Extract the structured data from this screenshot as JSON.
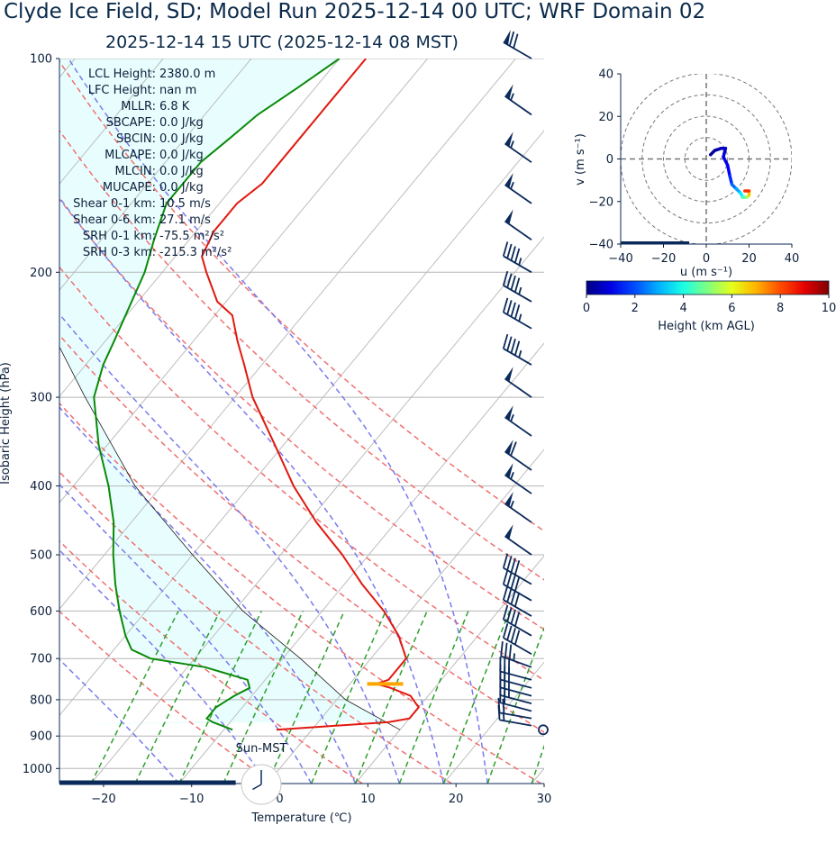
{
  "title": {
    "line1": "Clyde Ice Field, SD; Model Run 2025-12-14 00 UTC; WRF Domain 02",
    "line2": "2025-12-14 15 UTC  (2025-12-14 08 MST)"
  },
  "chart_data": [
    {
      "type": "skew-t",
      "xlabel": "Temperature (℃)",
      "ylabel": "Isobaric Height (hPa)",
      "xlim": [
        -25,
        30
      ],
      "ylim": [
        1050,
        100
      ],
      "x_ticks": [
        -20,
        -10,
        0,
        10,
        20,
        30
      ],
      "x_tick_labels": [
        "−20",
        "−10",
        "0",
        "10",
        "20",
        "30"
      ],
      "y_ticks": [
        100,
        200,
        300,
        400,
        500,
        600,
        700,
        800,
        900,
        1000
      ],
      "skew_deg_per_log": 29,
      "dry_adiabats_theta_K": [
        270,
        280,
        290,
        300,
        310,
        320,
        330,
        340,
        350
      ],
      "moist_adiabats_start_C": [
        -10,
        0,
        5,
        10,
        15,
        20,
        25
      ],
      "mixing_ratio_start_C": [
        -20,
        -15,
        -10,
        -5,
        0,
        5,
        10,
        15,
        20,
        25,
        30
      ],
      "isotherm_spacing_C": 10,
      "grid": true,
      "temperature_profile": {
        "p": [
          882,
          860,
          850,
          820,
          790,
          770,
          760,
          750,
          700,
          650,
          600,
          550,
          500,
          450,
          400,
          350,
          300,
          270,
          250,
          230,
          220,
          200,
          190,
          175,
          160,
          150,
          130,
          115,
          100
        ],
        "T": [
          -4,
          8,
          10,
          10,
          8,
          5,
          3,
          4,
          4,
          1,
          -3,
          -8,
          -13,
          -19,
          -25,
          -31,
          -38,
          -42,
          -45,
          -48,
          -51,
          -55,
          -57,
          -58,
          -58,
          -57,
          -57,
          -57,
          -57
        ]
      },
      "dewpoint_profile": {
        "p": [
          882,
          860,
          850,
          820,
          790,
          770,
          750,
          720,
          700,
          680,
          650,
          600,
          550,
          500,
          450,
          400,
          350,
          300,
          270,
          250,
          200,
          180,
          160,
          140,
          130,
          120,
          110,
          100
        ],
        "Td": [
          -9,
          -12,
          -13,
          -13,
          -12,
          -11,
          -12,
          -18,
          -25,
          -28,
          -30,
          -33,
          -36,
          -39,
          -42,
          -46,
          -51,
          -56,
          -58,
          -59,
          -62,
          -64,
          -66,
          -66,
          -65,
          -64,
          -62,
          -60
        ]
      },
      "parcel_profile": {
        "p": [
          882,
          800,
          700,
          600,
          500,
          400,
          300,
          200,
          100
        ],
        "T": [
          10,
          1,
          -8,
          -19,
          -30,
          -43,
          -57,
          -76,
          -100
        ]
      },
      "lcl_marker": {
        "T": 4,
        "p": 760,
        "color": "#ffa500"
      },
      "wind_barbs": [
        {
          "p": 100,
          "speed_kt": 70,
          "dir_deg": 300
        },
        {
          "p": 120,
          "speed_kt": 55,
          "dir_deg": 305
        },
        {
          "p": 140,
          "speed_kt": 55,
          "dir_deg": 305
        },
        {
          "p": 160,
          "speed_kt": 55,
          "dir_deg": 305
        },
        {
          "p": 180,
          "speed_kt": 50,
          "dir_deg": 305
        },
        {
          "p": 200,
          "speed_kt": 45,
          "dir_deg": 300
        },
        {
          "p": 220,
          "speed_kt": 45,
          "dir_deg": 300
        },
        {
          "p": 240,
          "speed_kt": 45,
          "dir_deg": 300
        },
        {
          "p": 270,
          "speed_kt": 45,
          "dir_deg": 300
        },
        {
          "p": 300,
          "speed_kt": 50,
          "dir_deg": 305
        },
        {
          "p": 340,
          "speed_kt": 55,
          "dir_deg": 305
        },
        {
          "p": 380,
          "speed_kt": 60,
          "dir_deg": 305
        },
        {
          "p": 410,
          "speed_kt": 55,
          "dir_deg": 305
        },
        {
          "p": 450,
          "speed_kt": 55,
          "dir_deg": 305
        },
        {
          "p": 500,
          "speed_kt": 50,
          "dir_deg": 305
        },
        {
          "p": 550,
          "speed_kt": 40,
          "dir_deg": 300
        },
        {
          "p": 580,
          "speed_kt": 40,
          "dir_deg": 300
        },
        {
          "p": 610,
          "speed_kt": 40,
          "dir_deg": 300
        },
        {
          "p": 650,
          "speed_kt": 40,
          "dir_deg": 300
        },
        {
          "p": 690,
          "speed_kt": 40,
          "dir_deg": 300
        },
        {
          "p": 720,
          "speed_kt": 35,
          "dir_deg": 290
        },
        {
          "p": 750,
          "speed_kt": 30,
          "dir_deg": 285
        },
        {
          "p": 770,
          "speed_kt": 30,
          "dir_deg": 285
        },
        {
          "p": 790,
          "speed_kt": 25,
          "dir_deg": 285
        },
        {
          "p": 810,
          "speed_kt": 25,
          "dir_deg": 285
        },
        {
          "p": 830,
          "speed_kt": 20,
          "dir_deg": 285
        },
        {
          "p": 850,
          "speed_kt": 20,
          "dir_deg": 280
        },
        {
          "p": 870,
          "speed_kt": 15,
          "dir_deg": 280
        },
        {
          "p": 882,
          "speed_kt": 0,
          "dir_deg": 0
        }
      ],
      "indices_text": [
        {
          "label": "LCL Height:",
          "value": "2380.0 m"
        },
        {
          "label": "LFC Height:",
          "value": "nan m"
        },
        {
          "label": "MLLR:",
          "value": "6.8 K"
        },
        {
          "label": "SBCAPE:",
          "value": "0.0 J/kg"
        },
        {
          "label": "SBCIN:",
          "value": "0.0 J/kg"
        },
        {
          "label": "MLCAPE:",
          "value": "0.0 J/kg"
        },
        {
          "label": "MLCIN:",
          "value": "0.0 J/kg"
        },
        {
          "label": "MUCAPE:",
          "value": "0.0 J/kg"
        },
        {
          "label": "Shear 0-1 km:",
          "value": "10.5 m/s"
        },
        {
          "label": "Shear 0-6 km:",
          "value": "27.1 m/s"
        },
        {
          "label": "SRH 0-1 km:",
          "value": "-75.5 m²/s²"
        },
        {
          "label": "SRH 0-3 km:",
          "value": "-215.3 m²/s²"
        }
      ],
      "clock": {
        "label": "Sun-MST",
        "hour": 8,
        "minute": 0
      },
      "surface_bar_temp_C": [
        -25,
        -5
      ]
    },
    {
      "type": "hodograph",
      "xlabel": "u (m s⁻¹)",
      "ylabel": "v (m s⁻¹)",
      "xlim": [
        -40,
        40
      ],
      "ylim": [
        -40,
        40
      ],
      "x_ticks": [
        -40,
        -20,
        0,
        20,
        40
      ],
      "x_tick_labels": [
        "−40",
        "−20",
        "0",
        "20",
        "40"
      ],
      "y_ticks": [
        40,
        20,
        0,
        -20,
        -40
      ],
      "y_tick_labels": [
        "40",
        "20",
        "0",
        "−20",
        "−40"
      ],
      "ring_radii": [
        10,
        20,
        30,
        40
      ],
      "points": [
        {
          "u": 2,
          "v": 2,
          "h": 0.1
        },
        {
          "u": 4,
          "v": 4,
          "h": 0.3
        },
        {
          "u": 7,
          "v": 5,
          "h": 0.5
        },
        {
          "u": 9,
          "v": 5,
          "h": 0.7
        },
        {
          "u": 8,
          "v": 1,
          "h": 0.9
        },
        {
          "u": 10,
          "v": -3,
          "h": 1.1
        },
        {
          "u": 11,
          "v": -8,
          "h": 1.4
        },
        {
          "u": 12,
          "v": -12,
          "h": 2.0
        },
        {
          "u": 14,
          "v": -14,
          "h": 2.6
        },
        {
          "u": 16,
          "v": -16,
          "h": 3.2
        },
        {
          "u": 17,
          "v": -18,
          "h": 4.0
        },
        {
          "u": 19,
          "v": -18,
          "h": 5.0
        },
        {
          "u": 20,
          "v": -17,
          "h": 6.0
        },
        {
          "u": 20,
          "v": -15,
          "h": 7.5
        },
        {
          "u": 18,
          "v": -15,
          "h": 9.0
        }
      ]
    },
    {
      "type": "colorbar",
      "label": "Height (km AGL)",
      "range": [
        0,
        10
      ],
      "ticks": [
        0,
        2,
        4,
        6,
        8,
        10
      ],
      "colormap": "jet"
    }
  ]
}
